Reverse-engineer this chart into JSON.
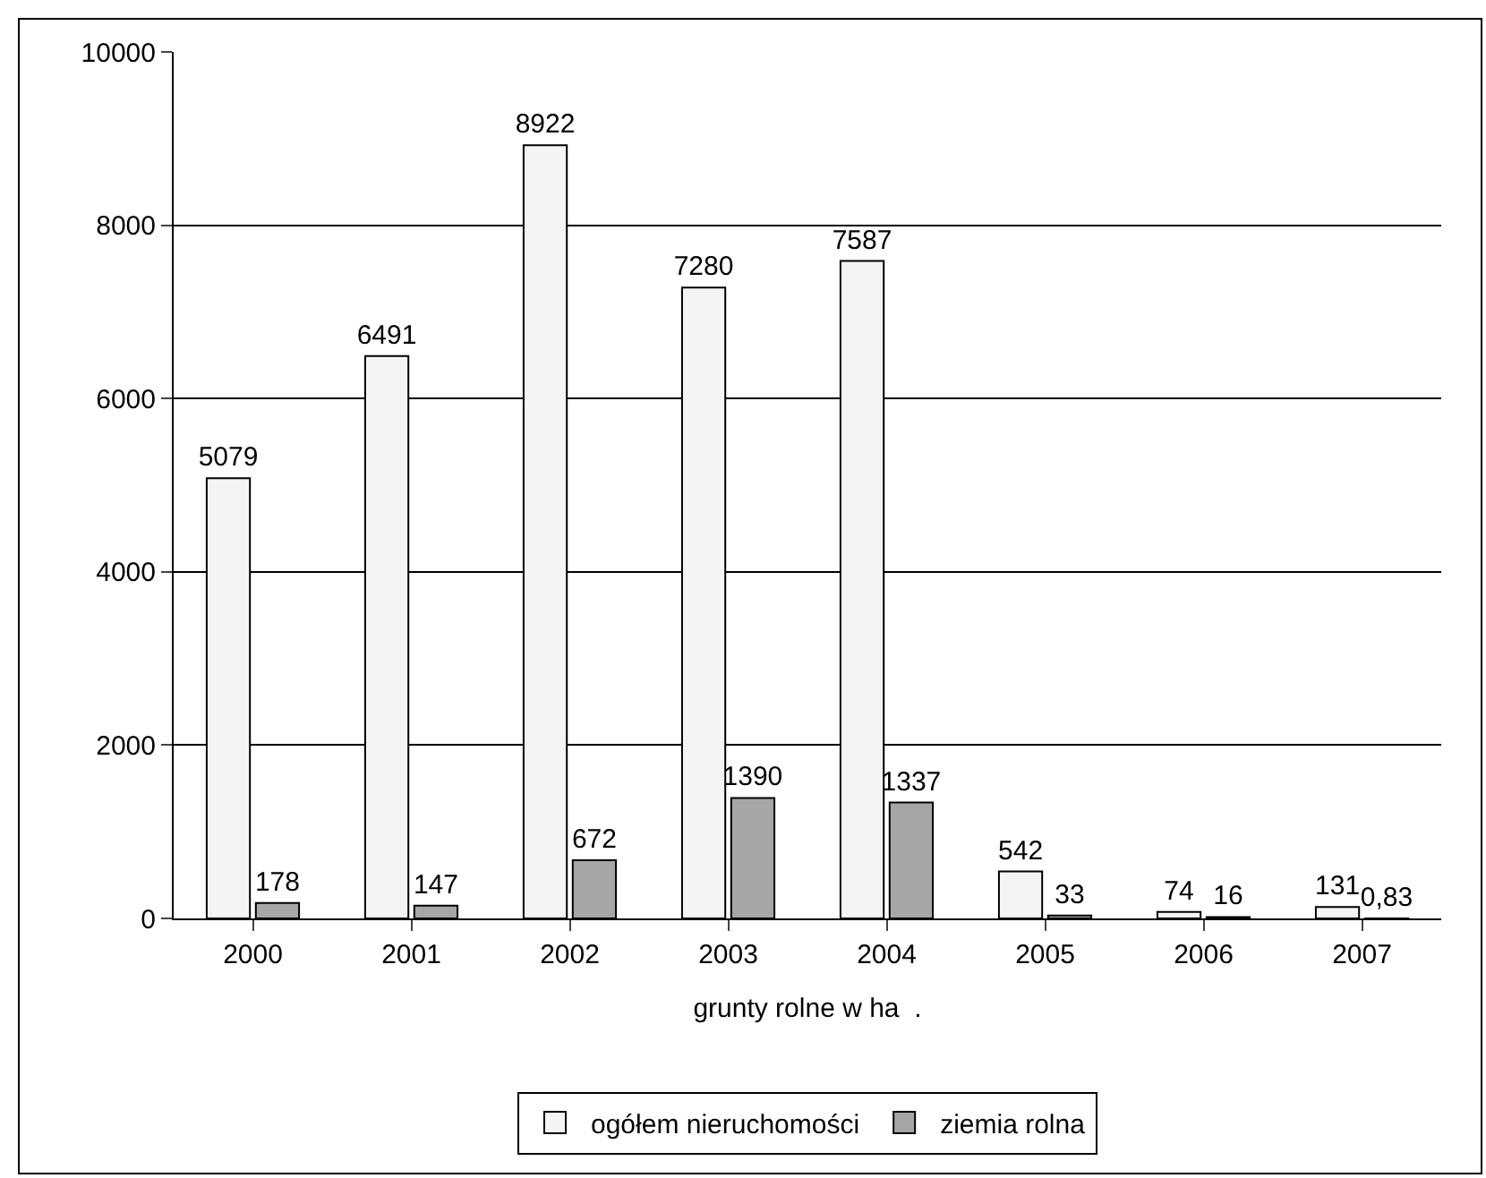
{
  "chart_data": {
    "type": "bar",
    "xlabel": "grunty rolne w ha  .",
    "categories": [
      "2000",
      "2001",
      "2002",
      "2003",
      "2004",
      "2005",
      "2006",
      "2007"
    ],
    "series": [
      {
        "name": "ogółem nieruchomości",
        "color": "#f4f4f4",
        "values": [
          5079,
          6491,
          8922,
          7280,
          7587,
          542,
          74,
          131
        ],
        "value_labels": [
          "5079",
          "6491",
          "8922",
          "7280",
          "7587",
          "542",
          "74",
          "131"
        ]
      },
      {
        "name": "ziemia rolna",
        "color": "#a6a6a6",
        "values": [
          178,
          147,
          672,
          1390,
          1337,
          33,
          16,
          0.83
        ],
        "value_labels": [
          "178",
          "147",
          "672",
          "1390",
          "1337",
          "33",
          "16",
          "0,83"
        ]
      }
    ],
    "ylim": [
      0,
      10000
    ],
    "yticks": [
      0,
      2000,
      4000,
      6000,
      8000,
      10000
    ],
    "grid": "y",
    "legend": "bottom"
  }
}
